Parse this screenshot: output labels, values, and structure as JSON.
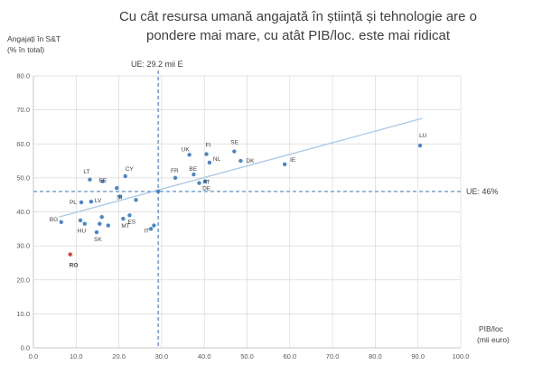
{
  "chart_data": {
    "type": "scatter",
    "title": "Cu cât resursa umană angajată în știință și tehnologie are o pondere mai mare, cu atât PIB/loc. este mai ridicat",
    "ylabel_line1": "Angajați în S&T",
    "ylabel_line2": "(% în total)",
    "xlabel_line1": "PIB/loc",
    "xlabel_line2": "(mii euro)",
    "xlim": [
      0,
      100
    ],
    "ylim": [
      0,
      80
    ],
    "x_ticks": [
      "0.0",
      "10.0",
      "20.0",
      "30.0",
      "40.0",
      "50.0",
      "60.0",
      "70.0",
      "80.0",
      "90.0",
      "100.0"
    ],
    "y_ticks": [
      "0.0",
      "10.0",
      "20.0",
      "30.0",
      "40.0",
      "50.0",
      "60.0",
      "70.0",
      "80.0"
    ],
    "grid": true,
    "point_color": "#4a86c8",
    "highlight_color": "#e8372c",
    "reference_color": "#4a86c8",
    "trendline": {
      "x": [
        6,
        91
      ],
      "y": [
        38.5,
        67.5
      ],
      "color": "#a9c8e6"
    },
    "ref_vertical": {
      "x": 29.2,
      "label": "UE: 29.2 mii E"
    },
    "ref_horizontal": {
      "y": 46,
      "label": "UE: 46%"
    },
    "points": [
      {
        "label": "LU",
        "x": 90.5,
        "y": 59.5
      },
      {
        "label": "IE",
        "x": 58.8,
        "y": 54.0
      },
      {
        "label": "SE",
        "x": 47.0,
        "y": 57.8
      },
      {
        "label": "DK",
        "x": 48.5,
        "y": 55.0
      },
      {
        "label": "FI",
        "x": 40.5,
        "y": 57.0
      },
      {
        "label": "UK",
        "x": 36.5,
        "y": 56.8
      },
      {
        "label": "NL",
        "x": 41.2,
        "y": 54.5
      },
      {
        "label": "BE",
        "x": 37.5,
        "y": 51.0
      },
      {
        "label": "FR",
        "x": 33.2,
        "y": 50.0
      },
      {
        "label": "AT",
        "x": 38.8,
        "y": 48.5
      },
      {
        "label": "DE",
        "x": 40.2,
        "y": 49.0
      },
      {
        "label": "CY",
        "x": 21.5,
        "y": 50.5
      },
      {
        "label": "LT",
        "x": 13.2,
        "y": 49.5
      },
      {
        "label": "EE",
        "x": 16.2,
        "y": 49.0
      },
      {
        "label": "",
        "x": 19.5,
        "y": 47.0
      },
      {
        "label": "SI",
        "x": 20.3,
        "y": 44.5
      },
      {
        "label": "",
        "x": 24.0,
        "y": 43.5
      },
      {
        "label": "LV",
        "x": 13.5,
        "y": 43.0
      },
      {
        "label": "PL",
        "x": 11.2,
        "y": 42.8
      },
      {
        "label": "",
        "x": 29.2,
        "y": 46.0
      },
      {
        "label": "ES",
        "x": 22.5,
        "y": 39.0
      },
      {
        "label": "MT",
        "x": 21.0,
        "y": 38.0
      },
      {
        "label": "",
        "x": 16.0,
        "y": 38.5
      },
      {
        "label": "",
        "x": 17.5,
        "y": 36.0
      },
      {
        "label": "",
        "x": 15.5,
        "y": 36.5
      },
      {
        "label": "BG",
        "x": 6.5,
        "y": 37.0
      },
      {
        "label": "",
        "x": 11.0,
        "y": 37.5
      },
      {
        "label": "HU",
        "x": 12.0,
        "y": 36.5
      },
      {
        "label": "IT",
        "x": 28.2,
        "y": 36.0
      },
      {
        "label": "",
        "x": 27.5,
        "y": 35.0
      },
      {
        "label": "SK",
        "x": 14.8,
        "y": 34.0
      },
      {
        "label": "RO",
        "x": 8.6,
        "y": 27.5,
        "highlight": true
      }
    ]
  }
}
